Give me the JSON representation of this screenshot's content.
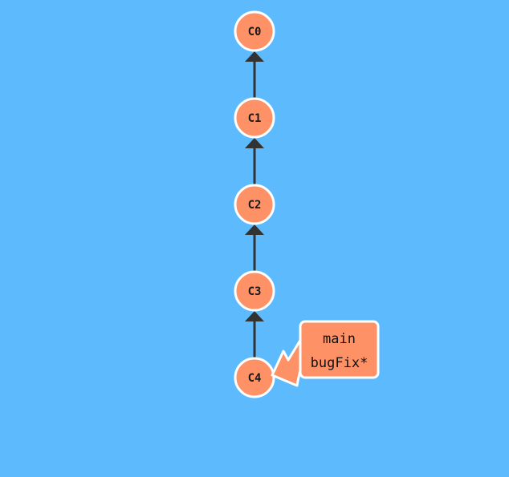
{
  "colors": {
    "background": "#5cbafd",
    "commit_fill": "#ff9166",
    "commit_stroke": "#ffffff",
    "edge": "#333333",
    "branch_fill": "#ff9166",
    "branch_stroke": "#ffffff"
  },
  "commits": [
    {
      "id": "C0",
      "label": "C0"
    },
    {
      "id": "C1",
      "label": "C1"
    },
    {
      "id": "C2",
      "label": "C2"
    },
    {
      "id": "C3",
      "label": "C3"
    },
    {
      "id": "C4",
      "label": "C4"
    }
  ],
  "edges": [
    {
      "from": "C1",
      "to": "C0"
    },
    {
      "from": "C2",
      "to": "C1"
    },
    {
      "from": "C3",
      "to": "C2"
    },
    {
      "from": "C4",
      "to": "C3"
    }
  ],
  "branch_tag": {
    "target": "C4",
    "lines": [
      "main",
      "bugFix*"
    ]
  }
}
